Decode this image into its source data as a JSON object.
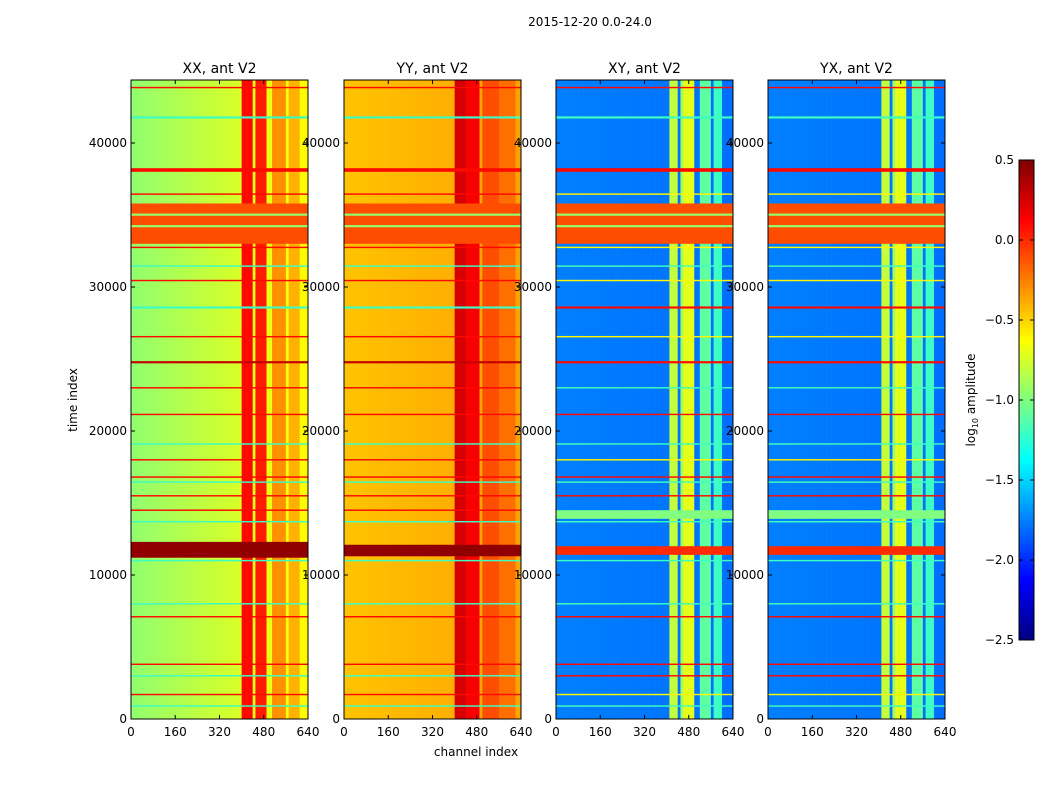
{
  "suptitle": "2015-12-20 0.0-24.0",
  "xlabel": "channel index",
  "ylabel": "time index",
  "colorbar": {
    "label_prefix": "log",
    "label_sub": "10",
    "label_suffix": " amplitude",
    "range": [
      -2.5,
      0.5
    ],
    "ticks": [
      "0.5",
      "0.0",
      "−0.5",
      "−1.0",
      "−1.5",
      "−2.0",
      "−2.5"
    ],
    "tick_values": [
      0.5,
      0.0,
      -0.5,
      -1.0,
      -1.5,
      -2.0,
      -2.5
    ],
    "colormap": "jet"
  },
  "chart_data": [
    {
      "type": "heatmap",
      "title": "XX, ant V2",
      "xlim": [
        0,
        640
      ],
      "ylim": [
        0,
        44375
      ],
      "xticks": [
        "0",
        "160",
        "320",
        "480",
        "640"
      ],
      "xtick_values": [
        0,
        160,
        320,
        480,
        640
      ],
      "yticks": [
        "0",
        "10000",
        "20000",
        "30000",
        "40000"
      ],
      "ytick_values": [
        0,
        10000,
        20000,
        30000,
        40000
      ],
      "base_left": -0.95,
      "base_right": -0.6,
      "channel_bands": [
        {
          "from": 405,
          "to": 440,
          "value": 0.1
        },
        {
          "from": 450,
          "to": 495,
          "value": 0.05
        },
        {
          "from": 515,
          "to": 560,
          "value": -0.3
        },
        {
          "from": 575,
          "to": 610,
          "value": -0.4
        }
      ],
      "time_stripes": [
        {
          "from": 33000,
          "to": 35800,
          "value": -0.1
        },
        {
          "from": 34150,
          "to": 34300,
          "value": -0.95
        },
        {
          "from": 34950,
          "to": 35100,
          "value": -0.95
        },
        {
          "from": 11200,
          "to": 12300,
          "value": 0.45
        },
        {
          "from": 43800,
          "to": 43900,
          "value": 0.1
        },
        {
          "from": 41700,
          "to": 41850,
          "value": -1.2
        },
        {
          "from": 38000,
          "to": 38250,
          "value": 0.1
        },
        {
          "from": 36400,
          "to": 36500,
          "value": 0.1
        },
        {
          "from": 32700,
          "to": 32800,
          "value": 0.1
        },
        {
          "from": 31400,
          "to": 31500,
          "value": -1.2
        },
        {
          "from": 30400,
          "to": 30500,
          "value": 0.1
        },
        {
          "from": 28500,
          "to": 28650,
          "value": -1.2
        },
        {
          "from": 26500,
          "to": 26600,
          "value": 0.1
        },
        {
          "from": 24700,
          "to": 24850,
          "value": 0.3
        },
        {
          "from": 22950,
          "to": 23050,
          "value": 0.1
        },
        {
          "from": 21100,
          "to": 21200,
          "value": 0.1
        },
        {
          "from": 19050,
          "to": 19150,
          "value": -1.2
        },
        {
          "from": 17950,
          "to": 18050,
          "value": 0.1
        },
        {
          "from": 16750,
          "to": 16850,
          "value": 0.1
        },
        {
          "from": 16400,
          "to": 16500,
          "value": -1.2
        },
        {
          "from": 15450,
          "to": 15550,
          "value": 0.1
        },
        {
          "from": 14450,
          "to": 14550,
          "value": 0.1
        },
        {
          "from": 13650,
          "to": 13750,
          "value": -1.2
        },
        {
          "from": 10950,
          "to": 11050,
          "value": -1.2
        },
        {
          "from": 7950,
          "to": 8050,
          "value": -1.2
        },
        {
          "from": 7050,
          "to": 7150,
          "value": 0.1
        },
        {
          "from": 3750,
          "to": 3850,
          "value": 0.1
        },
        {
          "from": 2950,
          "to": 3050,
          "value": -1.2
        },
        {
          "from": 1650,
          "to": 1750,
          "value": 0.1
        },
        {
          "from": 850,
          "to": 950,
          "value": -1.2
        }
      ]
    },
    {
      "type": "heatmap",
      "title": "YY, ant V2",
      "xlim": [
        0,
        640
      ],
      "ylim": [
        0,
        44375
      ],
      "xticks": [
        "0",
        "160",
        "320",
        "480",
        "640"
      ],
      "xtick_values": [
        0,
        160,
        320,
        480,
        640
      ],
      "yticks": [
        "0",
        "10000",
        "20000",
        "30000",
        "40000"
      ],
      "ytick_values": [
        0,
        10000,
        20000,
        30000,
        40000
      ],
      "base_left": -0.45,
      "base_right": -0.35,
      "channel_bands": [
        {
          "from": 400,
          "to": 440,
          "value": 0.25
        },
        {
          "from": 445,
          "to": 495,
          "value": 0.15
        },
        {
          "from": 500,
          "to": 560,
          "value": -0.1
        },
        {
          "from": 565,
          "to": 620,
          "value": -0.2
        }
      ],
      "time_stripes": [
        {
          "from": 33000,
          "to": 35800,
          "value": -0.1
        },
        {
          "from": 34150,
          "to": 34300,
          "value": -0.95
        },
        {
          "from": 34950,
          "to": 35100,
          "value": -0.95
        },
        {
          "from": 11300,
          "to": 12100,
          "value": 0.45
        },
        {
          "from": 43800,
          "to": 43900,
          "value": 0.1
        },
        {
          "from": 41700,
          "to": 41850,
          "value": -1.2
        },
        {
          "from": 38000,
          "to": 38250,
          "value": 0.1
        },
        {
          "from": 36400,
          "to": 36500,
          "value": 0.1
        },
        {
          "from": 32700,
          "to": 32800,
          "value": 0.1
        },
        {
          "from": 31400,
          "to": 31500,
          "value": -1.2
        },
        {
          "from": 30400,
          "to": 30500,
          "value": 0.1
        },
        {
          "from": 28500,
          "to": 28650,
          "value": -1.2
        },
        {
          "from": 26500,
          "to": 26600,
          "value": 0.1
        },
        {
          "from": 24700,
          "to": 24850,
          "value": 0.3
        },
        {
          "from": 22950,
          "to": 23050,
          "value": 0.1
        },
        {
          "from": 21100,
          "to": 21200,
          "value": 0.1
        },
        {
          "from": 19050,
          "to": 19150,
          "value": -1.2
        },
        {
          "from": 17950,
          "to": 18050,
          "value": 0.1
        },
        {
          "from": 16750,
          "to": 16850,
          "value": 0.1
        },
        {
          "from": 16400,
          "to": 16500,
          "value": -1.2
        },
        {
          "from": 15450,
          "to": 15550,
          "value": 0.1
        },
        {
          "from": 14450,
          "to": 14550,
          "value": 0.1
        },
        {
          "from": 13650,
          "to": 13750,
          "value": -1.2
        },
        {
          "from": 10950,
          "to": 11050,
          "value": -1.2
        },
        {
          "from": 7950,
          "to": 8050,
          "value": -1.2
        },
        {
          "from": 7050,
          "to": 7150,
          "value": 0.1
        },
        {
          "from": 3750,
          "to": 3850,
          "value": 0.1
        },
        {
          "from": 2950,
          "to": 3050,
          "value": -1.2
        },
        {
          "from": 1650,
          "to": 1750,
          "value": 0.1
        },
        {
          "from": 850,
          "to": 950,
          "value": -1.2
        }
      ]
    },
    {
      "type": "heatmap",
      "title": "XY, ant V2",
      "xlim": [
        0,
        640
      ],
      "ylim": [
        0,
        44375
      ],
      "xticks": [
        "0",
        "160",
        "320",
        "480",
        "640"
      ],
      "xtick_values": [
        0,
        160,
        320,
        480,
        640
      ],
      "yticks": [
        "0",
        "10000",
        "20000",
        "30000",
        "40000"
      ],
      "ytick_values": [
        0,
        10000,
        20000,
        30000,
        40000
      ],
      "base_left": -1.75,
      "base_right": -1.8,
      "channel_bands": [
        {
          "from": 410,
          "to": 440,
          "value": -0.8
        },
        {
          "from": 450,
          "to": 460,
          "value": -0.9
        },
        {
          "from": 465,
          "to": 500,
          "value": -0.7
        },
        {
          "from": 520,
          "to": 560,
          "value": -1.1
        },
        {
          "from": 575,
          "to": 605,
          "value": -1.2
        }
      ],
      "time_stripes": [
        {
          "from": 33000,
          "to": 35800,
          "value": -0.1
        },
        {
          "from": 34150,
          "to": 34300,
          "value": -0.95
        },
        {
          "from": 34950,
          "to": 35100,
          "value": -0.95
        },
        {
          "from": 11400,
          "to": 12000,
          "value": 0.0
        },
        {
          "from": 13900,
          "to": 14500,
          "value": -1.0
        },
        {
          "from": 43800,
          "to": 43900,
          "value": 0.1
        },
        {
          "from": 41700,
          "to": 41850,
          "value": -1.2
        },
        {
          "from": 38000,
          "to": 38250,
          "value": 0.1
        },
        {
          "from": 36400,
          "to": 36500,
          "value": -0.6
        },
        {
          "from": 32700,
          "to": 32800,
          "value": -0.6
        },
        {
          "from": 31400,
          "to": 31500,
          "value": -1.2
        },
        {
          "from": 30400,
          "to": 30500,
          "value": -0.6
        },
        {
          "from": 28500,
          "to": 28650,
          "value": 0.1
        },
        {
          "from": 26500,
          "to": 26600,
          "value": -0.6
        },
        {
          "from": 24700,
          "to": 24850,
          "value": 0.1
        },
        {
          "from": 22950,
          "to": 23050,
          "value": -1.2
        },
        {
          "from": 21100,
          "to": 21200,
          "value": 0.1
        },
        {
          "from": 19050,
          "to": 19150,
          "value": -1.2
        },
        {
          "from": 17950,
          "to": 18050,
          "value": -0.6
        },
        {
          "from": 16750,
          "to": 16850,
          "value": 0.1
        },
        {
          "from": 16400,
          "to": 16500,
          "value": -1.2
        },
        {
          "from": 15450,
          "to": 15550,
          "value": 0.1
        },
        {
          "from": 13650,
          "to": 13750,
          "value": -1.2
        },
        {
          "from": 10950,
          "to": 11050,
          "value": -1.2
        },
        {
          "from": 7950,
          "to": 8050,
          "value": -1.2
        },
        {
          "from": 7050,
          "to": 7150,
          "value": 0.1
        },
        {
          "from": 3750,
          "to": 3850,
          "value": 0.1
        },
        {
          "from": 2950,
          "to": 3050,
          "value": 0.1
        },
        {
          "from": 1650,
          "to": 1750,
          "value": -0.6
        },
        {
          "from": 850,
          "to": 950,
          "value": -1.2
        }
      ]
    },
    {
      "type": "heatmap",
      "title": "YX, ant V2",
      "xlim": [
        0,
        640
      ],
      "ylim": [
        0,
        44375
      ],
      "xticks": [
        "0",
        "160",
        "320",
        "480",
        "640"
      ],
      "xtick_values": [
        0,
        160,
        320,
        480,
        640
      ],
      "yticks": [
        "0",
        "10000",
        "20000",
        "30000",
        "40000"
      ],
      "ytick_values": [
        0,
        10000,
        20000,
        30000,
        40000
      ],
      "base_left": -1.75,
      "base_right": -1.8,
      "channel_bands": [
        {
          "from": 410,
          "to": 440,
          "value": -0.8
        },
        {
          "from": 450,
          "to": 460,
          "value": -0.9
        },
        {
          "from": 465,
          "to": 500,
          "value": -0.7
        },
        {
          "from": 520,
          "to": 560,
          "value": -1.1
        },
        {
          "from": 575,
          "to": 605,
          "value": -1.2
        }
      ],
      "time_stripes": [
        {
          "from": 33000,
          "to": 35800,
          "value": -0.1
        },
        {
          "from": 34150,
          "to": 34300,
          "value": -0.95
        },
        {
          "from": 34950,
          "to": 35100,
          "value": -0.95
        },
        {
          "from": 11400,
          "to": 12000,
          "value": 0.0
        },
        {
          "from": 13900,
          "to": 14500,
          "value": -1.0
        },
        {
          "from": 43800,
          "to": 43900,
          "value": 0.1
        },
        {
          "from": 41700,
          "to": 41850,
          "value": -1.2
        },
        {
          "from": 38000,
          "to": 38250,
          "value": 0.1
        },
        {
          "from": 36400,
          "to": 36500,
          "value": -0.6
        },
        {
          "from": 32700,
          "to": 32800,
          "value": -0.6
        },
        {
          "from": 31400,
          "to": 31500,
          "value": -1.2
        },
        {
          "from": 30400,
          "to": 30500,
          "value": -0.6
        },
        {
          "from": 28500,
          "to": 28650,
          "value": 0.1
        },
        {
          "from": 26500,
          "to": 26600,
          "value": -0.6
        },
        {
          "from": 24700,
          "to": 24850,
          "value": 0.1
        },
        {
          "from": 22950,
          "to": 23050,
          "value": -1.2
        },
        {
          "from": 21100,
          "to": 21200,
          "value": 0.1
        },
        {
          "from": 19050,
          "to": 19150,
          "value": -1.2
        },
        {
          "from": 17950,
          "to": 18050,
          "value": -0.6
        },
        {
          "from": 16750,
          "to": 16850,
          "value": 0.1
        },
        {
          "from": 16400,
          "to": 16500,
          "value": -1.2
        },
        {
          "from": 15450,
          "to": 15550,
          "value": 0.1
        },
        {
          "from": 13650,
          "to": 13750,
          "value": -1.2
        },
        {
          "from": 10950,
          "to": 11050,
          "value": -1.2
        },
        {
          "from": 7950,
          "to": 8050,
          "value": -1.2
        },
        {
          "from": 7050,
          "to": 7150,
          "value": 0.1
        },
        {
          "from": 3750,
          "to": 3850,
          "value": 0.1
        },
        {
          "from": 2950,
          "to": 3050,
          "value": 0.1
        },
        {
          "from": 1650,
          "to": 1750,
          "value": -0.6
        },
        {
          "from": 850,
          "to": 950,
          "value": -1.2
        }
      ]
    }
  ]
}
